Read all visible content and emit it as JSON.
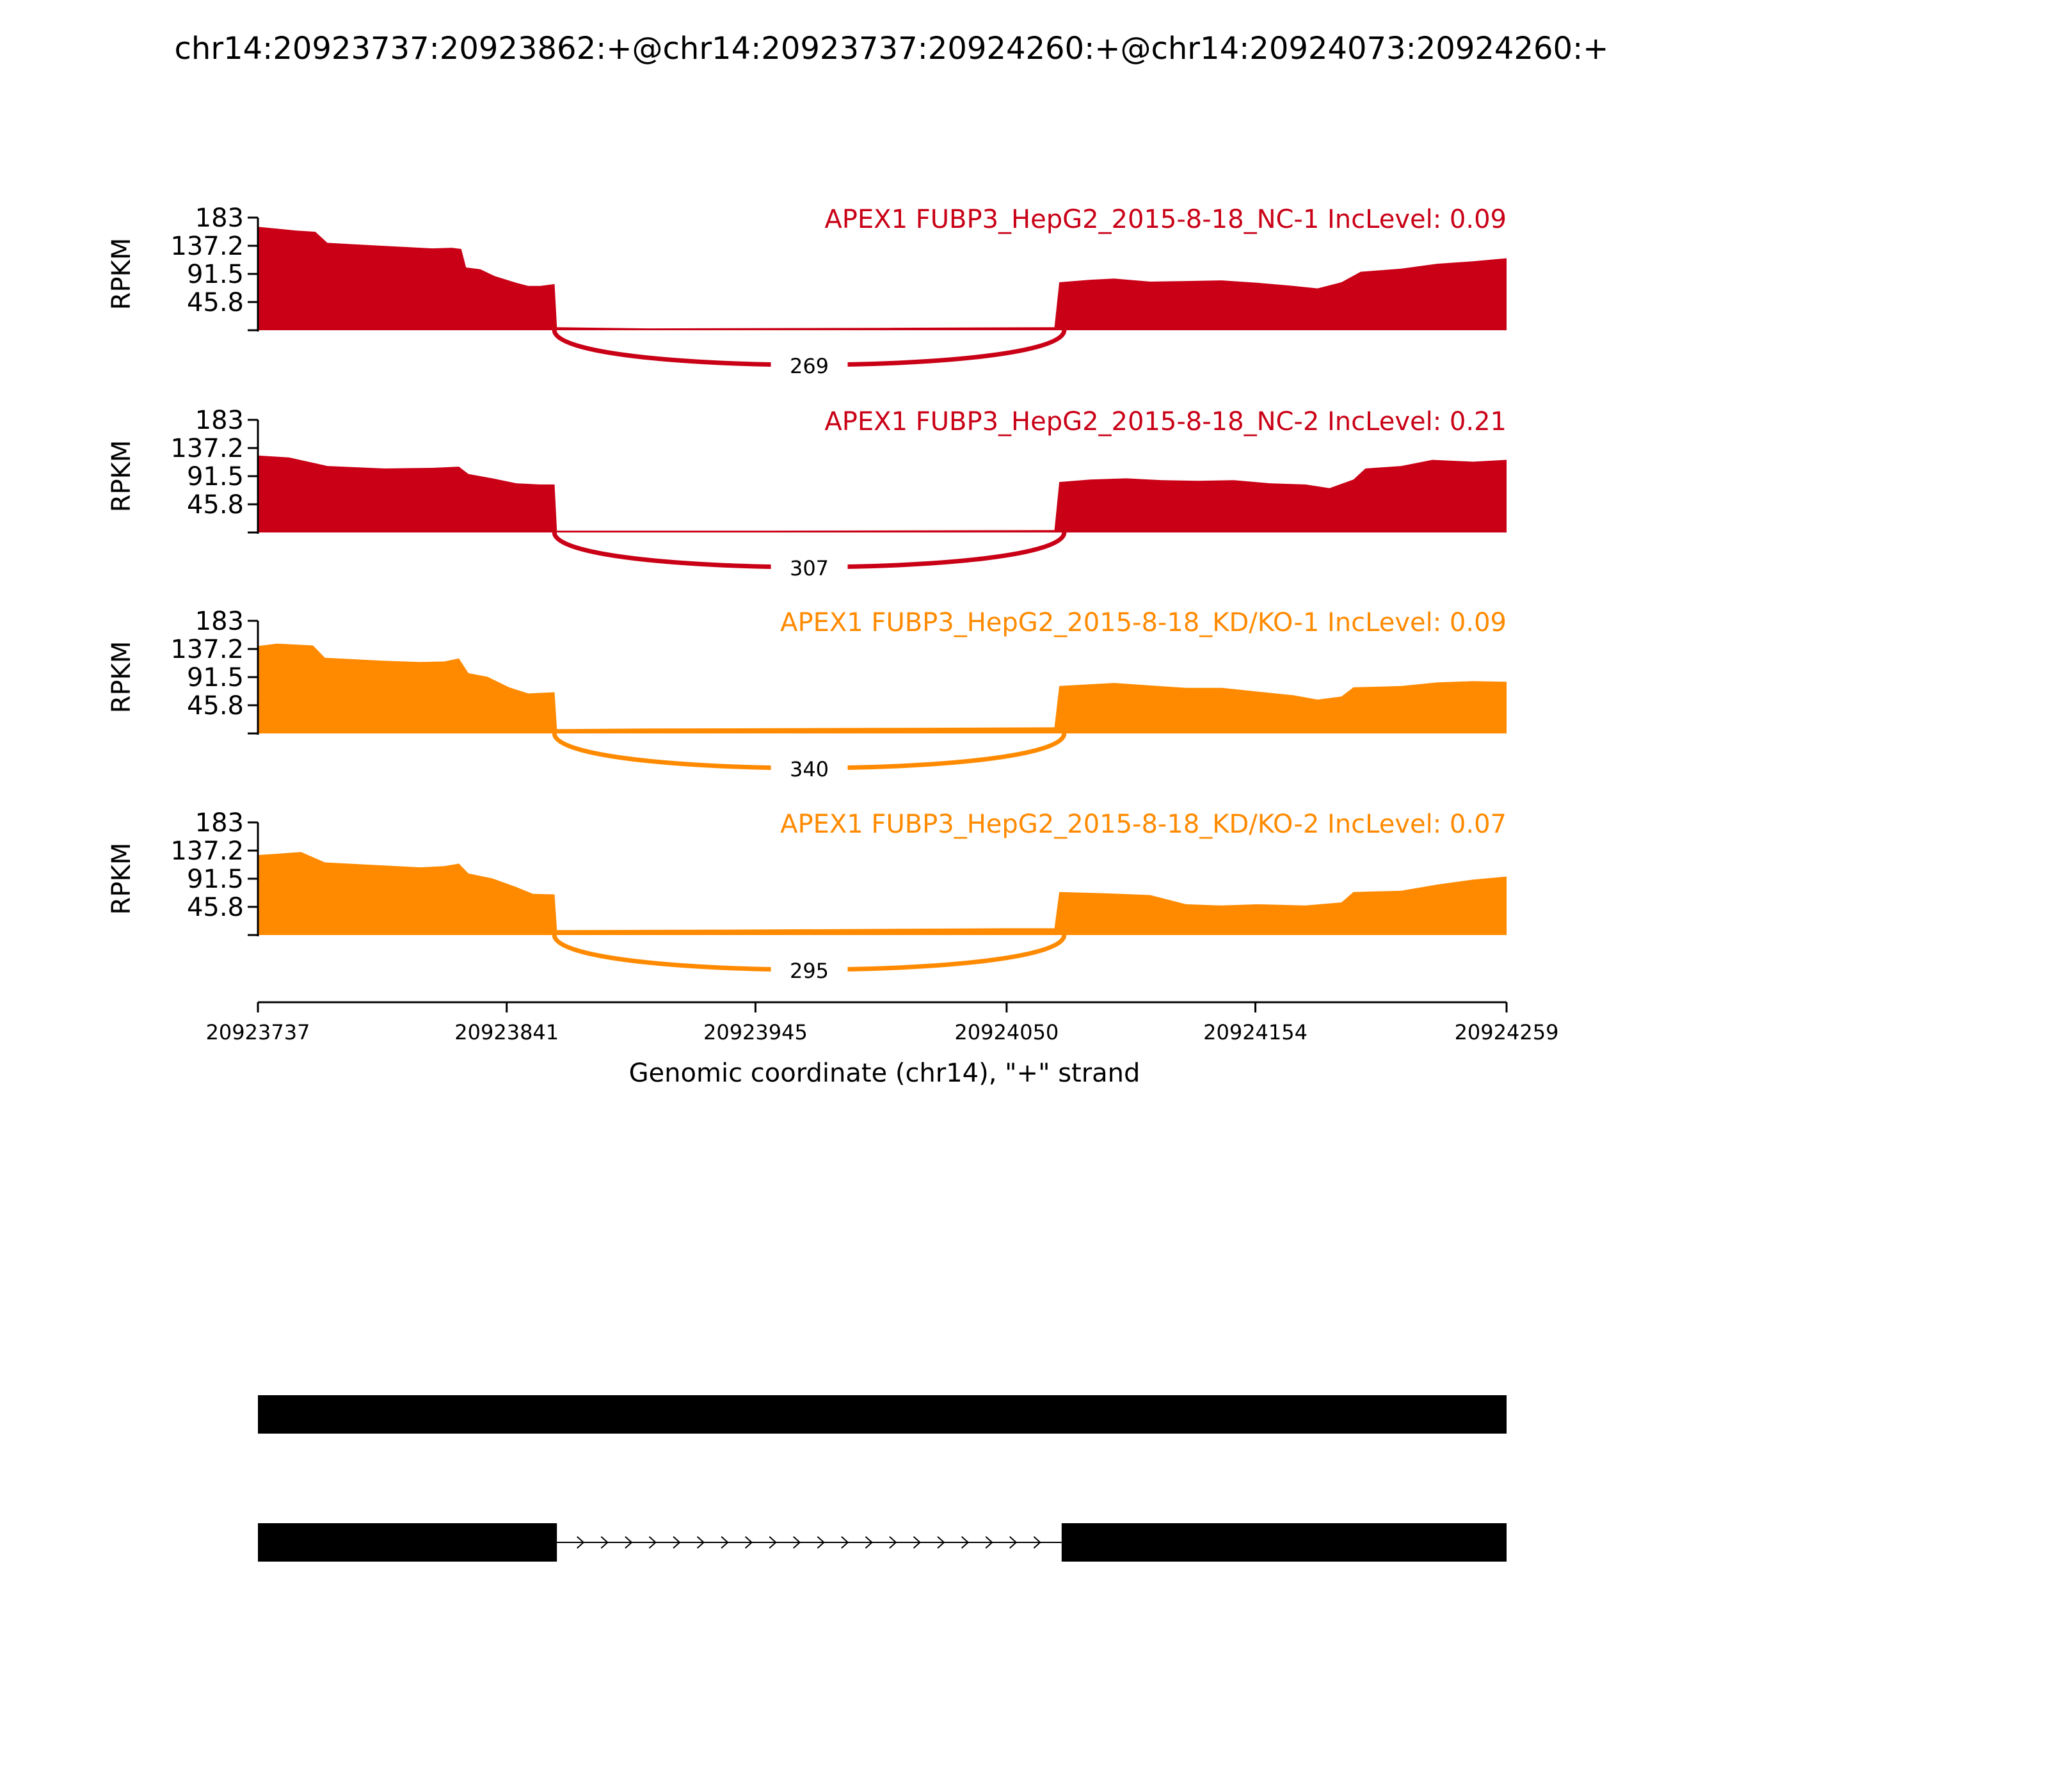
{
  "title": "chr14:20923737:20923862:+@chr14:20923737:20924260:+@chr14:20924073:20924260:+",
  "chart_data": {
    "type": "area",
    "ylabel": "RPKM",
    "xlabel": "Genomic coordinate (chr14), \"+\" strand",
    "xlim": [
      20923737,
      20924259
    ],
    "xticks": [
      "20923737",
      "20923841",
      "20923945",
      "20924050",
      "20924154",
      "20924259"
    ],
    "ylim": [
      0,
      183
    ],
    "yticks": [
      "45.8",
      "91.5",
      "137.2",
      "183"
    ],
    "colors": {
      "NC": "#c90016",
      "KD": "#ff8a00",
      "structure": "#000000"
    },
    "tracks": [
      {
        "label": "APEX1 FUBP3_HepG2_2015-8-18_NC-1 IncLevel: 0.09",
        "color": "#c90016",
        "junction_count": "269",
        "coverage": [
          [
            20923737,
            168
          ],
          [
            20923745,
            165
          ],
          [
            20923753,
            162
          ],
          [
            20923761,
            160
          ],
          [
            20923766,
            142
          ],
          [
            20923780,
            139
          ],
          [
            20923795,
            136
          ],
          [
            20923810,
            133
          ],
          [
            20923818,
            134
          ],
          [
            20923822,
            132
          ],
          [
            20923824,
            102
          ],
          [
            20923830,
            99
          ],
          [
            20923836,
            88
          ],
          [
            20923845,
            77
          ],
          [
            20923850,
            72
          ],
          [
            20923855,
            72
          ],
          [
            20923861,
            75
          ],
          [
            20923862,
            5
          ],
          [
            20923900,
            3
          ],
          [
            20924000,
            4
          ],
          [
            20924070,
            5
          ],
          [
            20924072,
            78
          ],
          [
            20924085,
            82
          ],
          [
            20924095,
            84
          ],
          [
            20924110,
            79
          ],
          [
            20924125,
            80
          ],
          [
            20924140,
            81
          ],
          [
            20924155,
            77
          ],
          [
            20924170,
            72
          ],
          [
            20924180,
            68
          ],
          [
            20924190,
            78
          ],
          [
            20924198,
            95
          ],
          [
            20924215,
            100
          ],
          [
            20924230,
            108
          ],
          [
            20924245,
            112
          ],
          [
            20924259,
            117
          ]
        ]
      },
      {
        "label": "APEX1 FUBP3_HepG2_2015-8-18_NC-2 IncLevel: 0.21",
        "color": "#c90016",
        "junction_count": "307",
        "coverage": [
          [
            20923737,
            125
          ],
          [
            20923750,
            122
          ],
          [
            20923766,
            108
          ],
          [
            20923790,
            104
          ],
          [
            20923810,
            105
          ],
          [
            20923821,
            107
          ],
          [
            20923825,
            95
          ],
          [
            20923835,
            88
          ],
          [
            20923845,
            80
          ],
          [
            20923855,
            78
          ],
          [
            20923861,
            78
          ],
          [
            20923862,
            3
          ],
          [
            20923950,
            3
          ],
          [
            20924070,
            4
          ],
          [
            20924072,
            82
          ],
          [
            20924085,
            86
          ],
          [
            20924100,
            88
          ],
          [
            20924115,
            85
          ],
          [
            20924130,
            84
          ],
          [
            20924145,
            85
          ],
          [
            20924160,
            80
          ],
          [
            20924175,
            78
          ],
          [
            20924185,
            72
          ],
          [
            20924195,
            86
          ],
          [
            20924200,
            104
          ],
          [
            20924215,
            108
          ],
          [
            20924228,
            118
          ],
          [
            20924245,
            115
          ],
          [
            20924259,
            118
          ]
        ]
      },
      {
        "label": "APEX1 FUBP3_HepG2_2015-8-18_KD/KO-1 IncLevel: 0.09",
        "color": "#ff8a00",
        "junction_count": "340",
        "coverage": [
          [
            20923737,
            142
          ],
          [
            20923745,
            146
          ],
          [
            20923760,
            143
          ],
          [
            20923765,
            123
          ],
          [
            20923790,
            118
          ],
          [
            20923805,
            116
          ],
          [
            20923815,
            117
          ],
          [
            20923821,
            122
          ],
          [
            20923825,
            98
          ],
          [
            20923833,
            92
          ],
          [
            20923842,
            75
          ],
          [
            20923850,
            65
          ],
          [
            20923861,
            67
          ],
          [
            20923862,
            7
          ],
          [
            20923900,
            8
          ],
          [
            20924000,
            9
          ],
          [
            20924070,
            10
          ],
          [
            20924072,
            77
          ],
          [
            20924085,
            80
          ],
          [
            20924095,
            82
          ],
          [
            20924110,
            78
          ],
          [
            20924125,
            74
          ],
          [
            20924140,
            74
          ],
          [
            20924155,
            68
          ],
          [
            20924170,
            62
          ],
          [
            20924180,
            55
          ],
          [
            20924190,
            60
          ],
          [
            20924195,
            75
          ],
          [
            20924215,
            77
          ],
          [
            20924230,
            83
          ],
          [
            20924245,
            85
          ],
          [
            20924259,
            84
          ]
        ]
      },
      {
        "label": "APEX1 FUBP3_HepG2_2015-8-18_KD/KO-2 IncLevel: 0.07",
        "color": "#ff8a00",
        "junction_count": "295",
        "coverage": [
          [
            20923737,
            130
          ],
          [
            20923745,
            132
          ],
          [
            20923755,
            135
          ],
          [
            20923765,
            118
          ],
          [
            20923785,
            114
          ],
          [
            20923805,
            110
          ],
          [
            20923815,
            112
          ],
          [
            20923821,
            116
          ],
          [
            20923825,
            100
          ],
          [
            20923835,
            92
          ],
          [
            20923845,
            78
          ],
          [
            20923852,
            67
          ],
          [
            20923861,
            66
          ],
          [
            20923862,
            8
          ],
          [
            20923950,
            9
          ],
          [
            20924050,
            11
          ],
          [
            20924070,
            11
          ],
          [
            20924072,
            70
          ],
          [
            20924090,
            68
          ],
          [
            20924110,
            65
          ],
          [
            20924125,
            50
          ],
          [
            20924140,
            48
          ],
          [
            20924155,
            50
          ],
          [
            20924175,
            48
          ],
          [
            20924190,
            53
          ],
          [
            20924195,
            70
          ],
          [
            20924215,
            72
          ],
          [
            20924230,
            82
          ],
          [
            20924245,
            90
          ],
          [
            20924259,
            95
          ]
        ]
      }
    ],
    "junction": {
      "start": 20923862,
      "end": 20924073
    },
    "isoforms": [
      {
        "exons": [
          [
            20923737,
            20924259
          ]
        ]
      },
      {
        "exons": [
          [
            20923737,
            20923862
          ],
          [
            20924073,
            20924259
          ]
        ]
      }
    ]
  }
}
